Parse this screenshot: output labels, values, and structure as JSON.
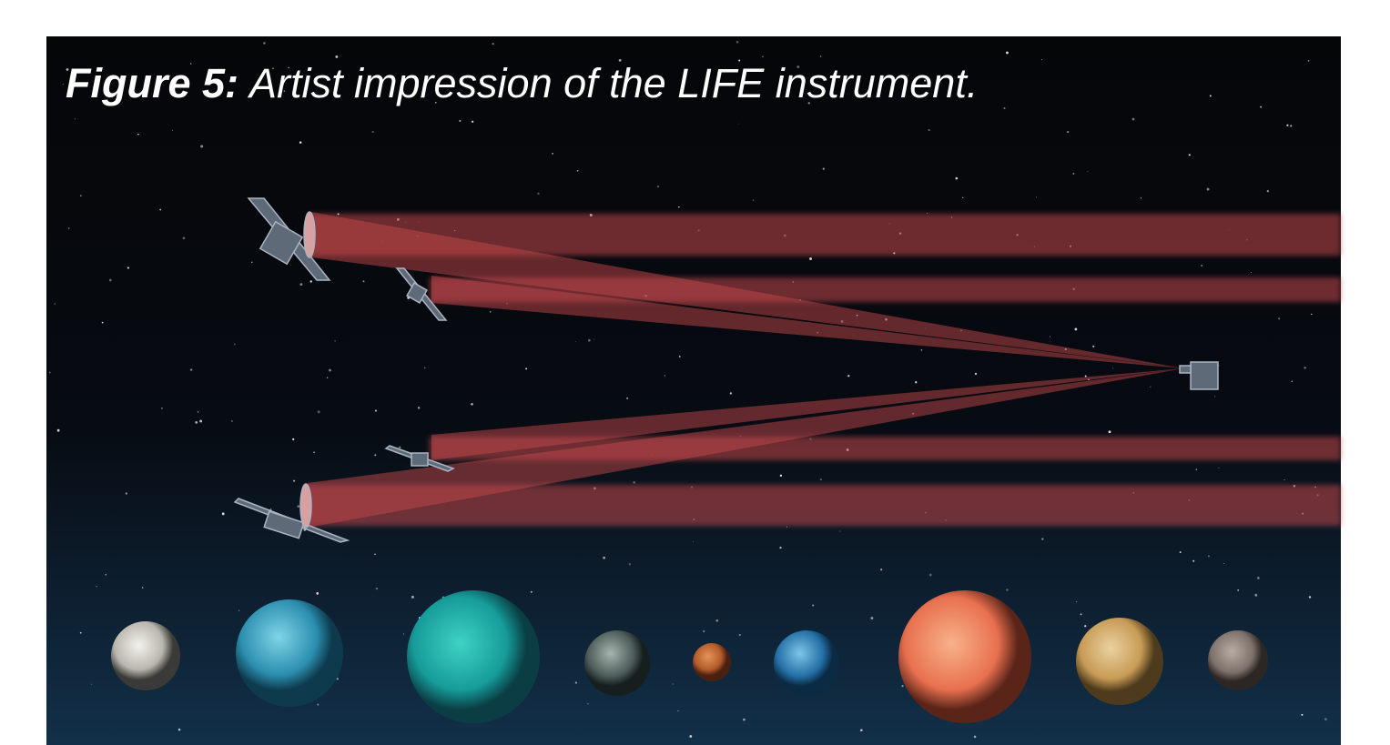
{
  "figure": {
    "label": "Figure 5:",
    "caption": "Artist impression of the LIFE instrument."
  }
}
